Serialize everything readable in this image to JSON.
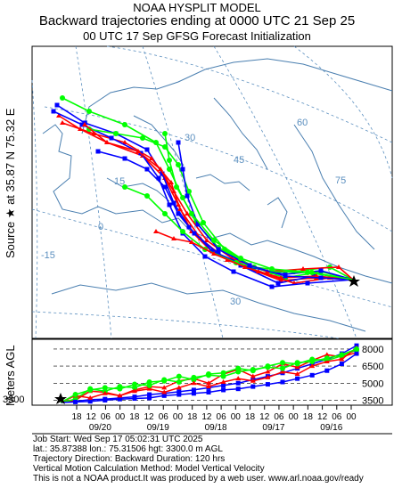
{
  "header": {
    "line1": "NOAA HYSPLIT MODEL",
    "line2": "Backward trajectories ending at 0000 UTC 21 Sep 25",
    "line3": "00 UTC 17 Sep    GFSG  Forecast Initialization"
  },
  "side_label": {
    "source": "Source ★  at   35.87 N   75.32 E",
    "meters_agl": "Meters AGL"
  },
  "map": {
    "lat_labels": [
      "60",
      "45",
      "30",
      "75"
    ],
    "lon_labels": [
      "30",
      "15",
      "0",
      "-15"
    ],
    "source_marker": "star",
    "series_colors": [
      "#ff0000",
      "#0000ff",
      "#00ff00"
    ]
  },
  "chart_data": {
    "type": "line",
    "title": "",
    "ylabel": "Meters AGL",
    "y_ticks": [
      "8000",
      "6500",
      "5000",
      "3500"
    ],
    "start_height_label": "3300",
    "x_tick_labels": [
      "18",
      "12",
      "06",
      "00",
      "18",
      "12",
      "06",
      "00",
      "18",
      "12",
      "06",
      "00",
      "18",
      "12",
      "06",
      "00",
      "18",
      "12",
      "06",
      "00"
    ],
    "date_labels": [
      "09/20",
      "09/19",
      "09/18",
      "09/17",
      "09/16"
    ],
    "ylim": [
      3300,
      8700
    ],
    "series": [
      {
        "color": "#0000ff",
        "values": [
          3300,
          3400,
          3550,
          3600,
          3700,
          3800,
          4000,
          4100,
          4250,
          4400,
          4600,
          4800,
          5000,
          5300,
          5600,
          5900,
          6300,
          6700,
          7100,
          7600,
          8300
        ]
      },
      {
        "color": "#ff0000",
        "values": [
          3300,
          3500,
          4300,
          4200,
          3900,
          4400,
          4700,
          4600,
          5200,
          5400,
          5000,
          5800,
          6200,
          5600,
          6000,
          6700,
          6400,
          7000,
          7500,
          7300,
          7700
        ]
      },
      {
        "color": "#00ff00",
        "values": [
          3300,
          3600,
          4500,
          4300,
          4700,
          4600,
          5100,
          5200,
          5600,
          5300,
          5800,
          5900,
          6300,
          6100,
          6500,
          6800,
          6700,
          7100,
          7000,
          7400,
          7900
        ]
      },
      {
        "color": "#0000ff",
        "values": [
          3300,
          3350,
          3400,
          3500,
          3600,
          3650,
          3700,
          3900,
          4000,
          4100,
          4200,
          4400,
          4500,
          4700,
          4900,
          5100,
          5400,
          5700,
          6100,
          6700,
          7600
        ]
      },
      {
        "color": "#ff0000",
        "values": [
          3300,
          3900,
          3700,
          4100,
          3900,
          4300,
          4500,
          4200,
          4600,
          5000,
          4700,
          5100,
          5400,
          5200,
          5500,
          6000,
          5800,
          6500,
          6900,
          7100,
          8100
        ]
      },
      {
        "color": "#00ff00",
        "values": [
          3300,
          4000,
          4400,
          4600,
          4500,
          4900,
          4800,
          5300,
          5100,
          5500,
          5700,
          5600,
          6000,
          6200,
          6400,
          6300,
          6800,
          6900,
          7200,
          7500,
          8000
        ]
      }
    ]
  },
  "footer": {
    "line1": "Job Start: Wed Sep 17 05:02:31 UTC 2025",
    "line2": "lat.: 35.87388   lon.: 75.31506   hgt: 3300.0 m AGL",
    "line3": "Trajectory Direction: Backward      Duration: 120 hrs",
    "line4": "Vertical Motion Calculation Method: Model Vertical Velocity",
    "line5": "This is not a NOAA product.It was produced by a web user. www.arl.noaa.gov/ready"
  }
}
